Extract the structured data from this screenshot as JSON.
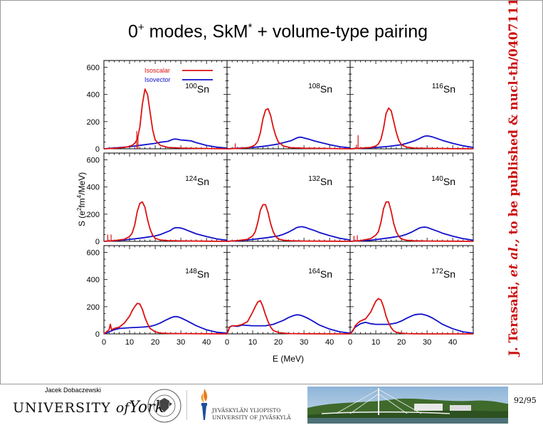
{
  "slide": {
    "title_main": "0",
    "title_sup": "+",
    "title_mid": " modes, SkM",
    "title_star": "*",
    "title_end": " + volume-type pairing",
    "citation_author": "J. Terasaki, ",
    "citation_etal": "et al.,",
    "citation_rest": " to be published & nucl-th/0407111"
  },
  "footer": {
    "author": "Jacek Dobaczewski",
    "university_1": "UNIVERSITY",
    "university_of": "of",
    "university_york": "York",
    "jyvaskyla_1": "JYVÄSKYLÄN YLIOPISTO",
    "jyvaskyla_2": "UNIVERSITY OF JYVÄSKYLÄ",
    "page": "92/95"
  },
  "colors": {
    "isoscalar": "#dd1111",
    "isovector": "#1111cc",
    "citation": "#cc1111"
  },
  "chart_data": {
    "type": "line",
    "xlabel": "E (MeV)",
    "ylabel": "S (e2fm4/MeV)",
    "xlim": [
      0,
      48
    ],
    "ylim": [
      0,
      650
    ],
    "x_ticks": [
      0,
      10,
      20,
      30,
      40
    ],
    "y_ticks": [
      0,
      200,
      400,
      600
    ],
    "legend": {
      "placement": "top-left of first panel",
      "entries": [
        "Isoscalar",
        "Isovector"
      ]
    },
    "panels": [
      {
        "mass": "100",
        "element": "Sn",
        "isoscalar": {
          "x": [
            0,
            4,
            8,
            10,
            11,
            12,
            13,
            14,
            15,
            16,
            17,
            18,
            19,
            20,
            22,
            25,
            30,
            35,
            40,
            48
          ],
          "y": [
            0,
            3,
            10,
            18,
            25,
            40,
            70,
            160,
            330,
            440,
            400,
            270,
            140,
            65,
            25,
            10,
            5,
            3,
            2,
            0
          ],
          "spikes": [
            [
              12.8,
              130
            ],
            [
              13.3,
              100
            ]
          ]
        },
        "isovector": {
          "x": [
            0,
            10,
            15,
            20,
            22,
            25,
            27,
            28,
            30,
            32,
            34,
            36,
            40,
            44,
            48
          ],
          "y": [
            0,
            15,
            28,
            40,
            48,
            55,
            70,
            72,
            65,
            62,
            58,
            45,
            25,
            12,
            5
          ]
        }
      },
      {
        "mass": "108",
        "element": "Sn",
        "isoscalar": {
          "x": [
            0,
            5,
            8,
            10,
            11,
            12,
            13,
            14,
            15,
            16,
            17,
            18,
            19,
            20,
            22,
            25,
            30,
            40,
            48
          ],
          "y": [
            0,
            3,
            8,
            18,
            30,
            55,
            120,
            220,
            285,
            295,
            245,
            160,
            95,
            50,
            20,
            8,
            4,
            2,
            0
          ],
          "spikes": [
            [
              3.2,
              40
            ]
          ]
        },
        "isovector": {
          "x": [
            0,
            10,
            15,
            20,
            22,
            25,
            27,
            28,
            29,
            30,
            32,
            34,
            36,
            40,
            44,
            48
          ],
          "y": [
            0,
            10,
            20,
            35,
            45,
            60,
            78,
            85,
            85,
            80,
            70,
            58,
            48,
            30,
            15,
            7
          ]
        }
      },
      {
        "mass": "116",
        "element": "Sn",
        "isoscalar": {
          "x": [
            0,
            4,
            8,
            10,
            11,
            12,
            13,
            14,
            15,
            16,
            17,
            18,
            19,
            20,
            22,
            25,
            30,
            40,
            48
          ],
          "y": [
            0,
            4,
            10,
            20,
            35,
            70,
            150,
            260,
            300,
            280,
            200,
            120,
            60,
            30,
            12,
            5,
            3,
            1,
            0
          ],
          "spikes": [
            [
              2.5,
              30
            ],
            [
              3.1,
              100
            ]
          ]
        },
        "isovector": {
          "x": [
            0,
            10,
            15,
            20,
            22,
            25,
            27,
            28,
            29,
            30,
            31,
            32,
            34,
            36,
            40,
            44,
            48
          ],
          "y": [
            0,
            10,
            18,
            30,
            40,
            58,
            75,
            85,
            92,
            95,
            92,
            88,
            75,
            62,
            40,
            22,
            10
          ]
        }
      },
      {
        "mass": "124",
        "element": "Sn",
        "isoscalar": {
          "x": [
            0,
            4,
            8,
            10,
            11,
            12,
            13,
            14,
            15,
            16,
            17,
            18,
            19,
            20,
            22,
            25,
            30,
            40,
            48
          ],
          "y": [
            0,
            5,
            15,
            35,
            60,
            120,
            220,
            280,
            290,
            250,
            160,
            90,
            45,
            22,
            10,
            5,
            3,
            1,
            0
          ],
          "spikes": [
            [
              1.5,
              50
            ],
            [
              2.8,
              50
            ]
          ]
        },
        "isovector": {
          "x": [
            0,
            8,
            15,
            20,
            22,
            24,
            26,
            27,
            28,
            29,
            30,
            31,
            32,
            34,
            36,
            40,
            44,
            48
          ],
          "y": [
            0,
            10,
            25,
            40,
            50,
            65,
            80,
            95,
            100,
            100,
            98,
            92,
            85,
            70,
            55,
            35,
            18,
            8
          ]
        }
      },
      {
        "mass": "132",
        "element": "Sn",
        "isoscalar": {
          "x": [
            0,
            4,
            8,
            10,
            11,
            12,
            13,
            14,
            15,
            16,
            17,
            18,
            19,
            20,
            22,
            25,
            30,
            40,
            48
          ],
          "y": [
            0,
            5,
            15,
            40,
            70,
            140,
            230,
            270,
            270,
            210,
            130,
            70,
            35,
            18,
            8,
            4,
            2,
            1,
            0
          ]
        },
        "isovector": {
          "x": [
            0,
            8,
            15,
            20,
            22,
            24,
            26,
            27,
            28,
            29,
            30,
            31,
            32,
            34,
            36,
            40,
            44,
            48
          ],
          "y": [
            0,
            10,
            25,
            40,
            52,
            68,
            88,
            100,
            105,
            108,
            105,
            100,
            92,
            80,
            65,
            42,
            22,
            10
          ]
        }
      },
      {
        "mass": "140",
        "element": "Sn",
        "isoscalar": {
          "x": [
            0,
            4,
            8,
            10,
            11,
            12,
            13,
            14,
            15,
            16,
            17,
            18,
            19,
            20,
            22,
            25,
            30,
            40,
            48
          ],
          "y": [
            0,
            5,
            20,
            45,
            70,
            140,
            240,
            290,
            290,
            220,
            130,
            70,
            35,
            18,
            8,
            4,
            2,
            1,
            0
          ],
          "spikes": [
            [
              1.5,
              40
            ],
            [
              2.8,
              45
            ]
          ]
        },
        "isovector": {
          "x": [
            0,
            8,
            15,
            20,
            22,
            24,
            26,
            27,
            28,
            29,
            30,
            31,
            32,
            34,
            36,
            40,
            44,
            48
          ],
          "y": [
            0,
            8,
            25,
            40,
            52,
            68,
            88,
            98,
            103,
            105,
            102,
            96,
            88,
            75,
            60,
            38,
            20,
            8
          ]
        }
      },
      {
        "mass": "148",
        "element": "Sn",
        "isoscalar": {
          "x": [
            0,
            2,
            2.5,
            3,
            4,
            6,
            8,
            10,
            11,
            12,
            13,
            14,
            15,
            16,
            17,
            18,
            20,
            22,
            25,
            30,
            40,
            48
          ],
          "y": [
            0,
            30,
            70,
            30,
            40,
            50,
            80,
            130,
            170,
            200,
            225,
            220,
            180,
            120,
            75,
            40,
            15,
            6,
            3,
            2,
            1,
            0
          ]
        },
        "isovector": {
          "x": [
            0,
            4,
            6,
            10,
            15,
            18,
            20,
            22,
            24,
            26,
            27,
            28,
            29,
            30,
            32,
            34,
            36,
            40,
            44,
            48
          ],
          "y": [
            0,
            30,
            40,
            45,
            50,
            55,
            65,
            80,
            100,
            118,
            125,
            128,
            125,
            118,
            100,
            80,
            60,
            30,
            12,
            5
          ]
        }
      },
      {
        "mass": "164",
        "element": "Sn",
        "isoscalar": {
          "x": [
            0,
            1,
            2,
            4,
            6,
            8,
            10,
            11,
            12,
            13,
            14,
            15,
            16,
            17,
            18,
            20,
            22,
            25,
            30,
            40,
            48
          ],
          "y": [
            0,
            50,
            60,
            60,
            70,
            90,
            160,
            200,
            235,
            245,
            200,
            140,
            90,
            50,
            25,
            10,
            5,
            2,
            1,
            0,
            0
          ]
        },
        "isovector": {
          "x": [
            0,
            1,
            2,
            4,
            6,
            10,
            15,
            18,
            20,
            22,
            24,
            25,
            26,
            27,
            28,
            29,
            30,
            32,
            34,
            36,
            40,
            44,
            48
          ],
          "y": [
            0,
            50,
            60,
            55,
            65,
            60,
            60,
            70,
            85,
            100,
            120,
            128,
            135,
            140,
            140,
            135,
            128,
            110,
            88,
            65,
            35,
            15,
            5
          ]
        }
      },
      {
        "mass": "172",
        "element": "Sn",
        "isoscalar": {
          "x": [
            0,
            1,
            2,
            3,
            4,
            6,
            8,
            9,
            10,
            11,
            12,
            13,
            14,
            15,
            16,
            17,
            18,
            20,
            22,
            25,
            30,
            40,
            48
          ],
          "y": [
            0,
            20,
            60,
            80,
            95,
            110,
            160,
            200,
            240,
            260,
            250,
            200,
            130,
            80,
            45,
            22,
            12,
            5,
            2,
            1,
            0,
            0,
            0
          ]
        },
        "isovector": {
          "x": [
            0,
            2,
            4,
            6,
            8,
            10,
            15,
            18,
            20,
            22,
            24,
            25,
            26,
            27,
            28,
            29,
            30,
            32,
            34,
            36,
            40,
            44,
            48
          ],
          "y": [
            0,
            50,
            75,
            85,
            75,
            70,
            70,
            80,
            95,
            115,
            132,
            140,
            143,
            145,
            145,
            140,
            135,
            118,
            95,
            70,
            38,
            15,
            5
          ]
        }
      }
    ]
  }
}
